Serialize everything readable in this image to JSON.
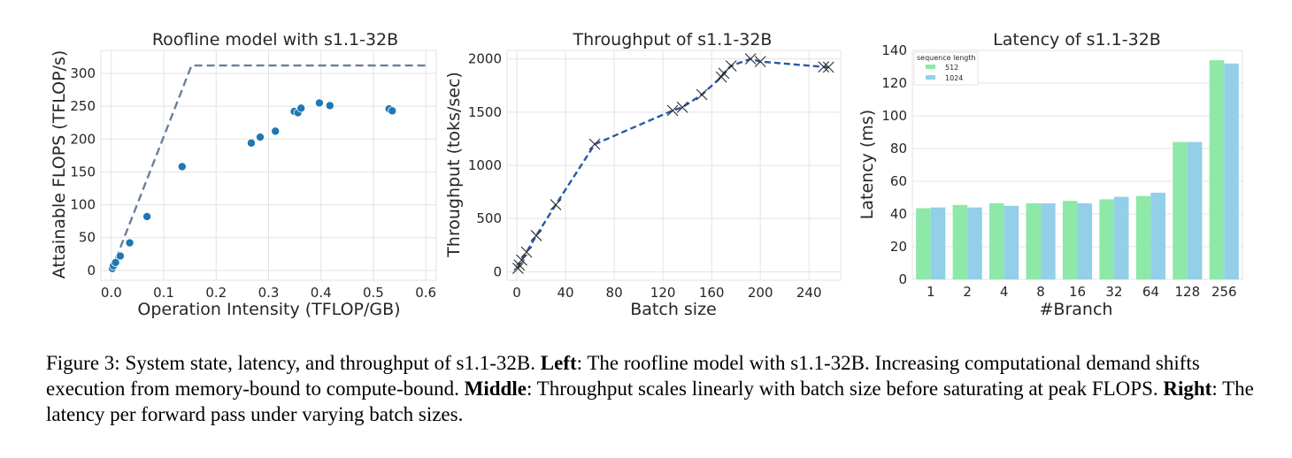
{
  "chart_data": [
    {
      "type": "scatter",
      "title": "Roofline model with s1.1-32B",
      "xlabel": "Operation Intensity (TFLOP/GB)",
      "ylabel": "Attainable FLOPS (TFLOP/s)",
      "xlim": [
        -0.02,
        0.62
      ],
      "ylim": [
        -15,
        335
      ],
      "xticks": [
        0.0,
        0.1,
        0.2,
        0.3,
        0.4,
        0.5,
        0.6
      ],
      "xtick_labels": [
        "0.0",
        "0.1",
        "0.2",
        "0.3",
        "0.4",
        "0.5",
        "0.6"
      ],
      "yticks": [
        0,
        50,
        100,
        150,
        200,
        250,
        300
      ],
      "ytick_labels": [
        "0",
        "50",
        "100",
        "150",
        "200",
        "250",
        "300"
      ],
      "grid": true,
      "roofline": {
        "x": [
          0.0,
          0.153,
          0.6
        ],
        "y": [
          0,
          312,
          312
        ],
        "color": "#6b7f99"
      },
      "points": {
        "x": [
          0.002,
          0.004,
          0.008,
          0.017,
          0.035,
          0.068,
          0.135,
          0.267,
          0.284,
          0.313,
          0.349,
          0.356,
          0.362,
          0.397,
          0.417,
          0.53,
          0.536
        ],
        "y": [
          3,
          7,
          12,
          22,
          42,
          82,
          158,
          194,
          203,
          212,
          242,
          240,
          247,
          255,
          251,
          246,
          243
        ],
        "color": "#1f77b4"
      }
    },
    {
      "type": "line",
      "title": "Throughput of s1.1-32B",
      "xlabel": "Batch size",
      "ylabel": "Throughput (toks/sec)",
      "xlim": [
        -8,
        266
      ],
      "ylim": [
        -80,
        2080
      ],
      "xticks": [
        0,
        40,
        80,
        120,
        160,
        200,
        240
      ],
      "xtick_labels": [
        "0",
        "40",
        "80",
        "120",
        "160",
        "200",
        "240"
      ],
      "yticks": [
        0,
        500,
        1000,
        1500,
        2000
      ],
      "ytick_labels": [
        "0",
        "500",
        "1000",
        "1500",
        "2000"
      ],
      "grid": true,
      "color": "#2559a8",
      "marker": "x",
      "x": [
        1,
        2,
        4,
        8,
        16,
        32,
        64,
        128,
        136,
        152,
        168,
        170,
        176,
        192,
        200,
        252,
        256
      ],
      "y": [
        32,
        63,
        110,
        185,
        340,
        630,
        1198,
        1515,
        1545,
        1665,
        1830,
        1865,
        1935,
        2000,
        1975,
        1925,
        1922
      ]
    },
    {
      "type": "bar",
      "title": "Latency of s1.1-32B",
      "xlabel": "#Branch",
      "ylabel": "Latency (ms)",
      "ylim": [
        0,
        140
      ],
      "yticks": [
        0,
        20,
        40,
        60,
        80,
        100,
        120,
        140
      ],
      "ytick_labels": [
        "0",
        "20",
        "40",
        "60",
        "80",
        "100",
        "120",
        "140"
      ],
      "grid": true,
      "categories": [
        "1",
        "2",
        "4",
        "8",
        "16",
        "32",
        "64",
        "128",
        "256"
      ],
      "legend": {
        "title": "sequence length",
        "placement": "top-left"
      },
      "series": [
        {
          "name": "512",
          "color": "#8ee8a8",
          "values": [
            43.5,
            45.5,
            46.5,
            46.5,
            48,
            49,
            51,
            84,
            134
          ]
        },
        {
          "name": "1024",
          "color": "#93cfe9",
          "values": [
            44,
            44,
            45,
            46.5,
            46.5,
            50.5,
            53,
            84,
            132
          ]
        }
      ]
    }
  ],
  "caption": {
    "label": "Figure 3:",
    "intro": " System state, latency, and throughput of s1.1-32B. ",
    "left_label": "Left",
    "left_text": ": The roofline model with s1.1-32B. Increasing computational demand shifts execution from memory-bound to compute-bound. ",
    "middle_label": "Middle",
    "middle_text": ": Throughput scales linearly with batch size before saturating at peak FLOPS. ",
    "right_label": "Right",
    "right_text": ": The latency per forward pass under varying batch sizes."
  }
}
